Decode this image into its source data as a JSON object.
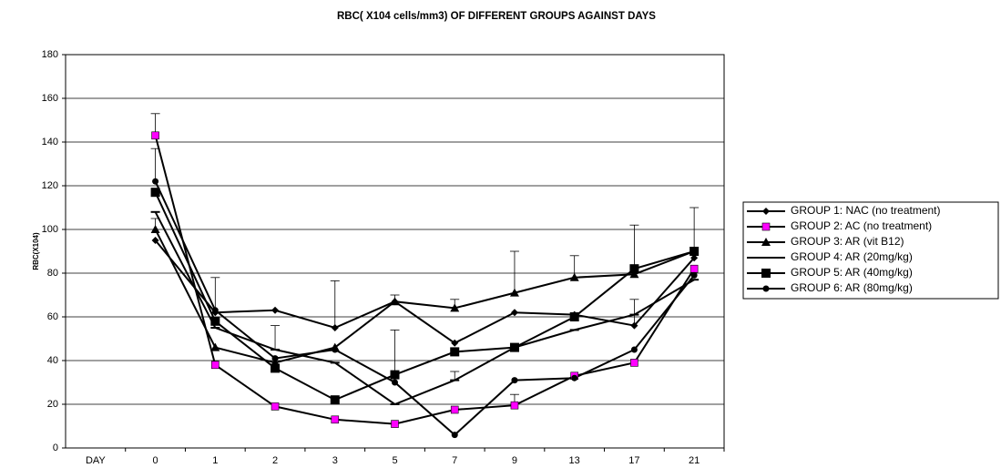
{
  "chart_data": {
    "type": "line",
    "title": "RBC( X104 cells/mm3) OF DIFFERENT GROUPS AGAINST DAYS",
    "y_label": "RBC(X104)",
    "categories": [
      "DAY",
      "0",
      "1",
      "2",
      "3",
      "5",
      "7",
      "9",
      "13",
      "17",
      "21"
    ],
    "ylim": [
      0,
      180
    ],
    "yticks": [
      0,
      20,
      40,
      60,
      80,
      100,
      120,
      140,
      160,
      180
    ],
    "grid": true,
    "legend": "right",
    "series": [
      {
        "name": "GROUP 1: NAC (no treatment)",
        "color": "#000000",
        "marker": "diamond",
        "values": [
          null,
          95,
          62,
          63,
          55,
          67,
          48,
          62,
          61,
          56,
          87
        ],
        "errors": [
          null,
          null,
          null,
          null,
          21.5,
          3,
          null,
          null,
          null,
          12,
          null
        ]
      },
      {
        "name": "GROUP 2: AC (no treatment)",
        "color": "#000000",
        "marker_color": "#ff00ff",
        "marker": "square",
        "values": [
          null,
          143,
          38,
          19,
          13,
          11,
          17.5,
          19.5,
          33,
          39,
          82
        ],
        "errors": [
          null,
          10,
          null,
          null,
          null,
          null,
          null,
          5,
          null,
          null,
          null
        ]
      },
      {
        "name": "GROUP 3: AR (vit B12)",
        "color": "#000000",
        "marker": "triangle",
        "values": [
          null,
          100,
          46,
          39,
          46,
          67,
          64,
          71,
          78,
          79.5,
          90
        ],
        "errors": [
          null,
          5,
          null,
          null,
          null,
          null,
          4,
          19,
          10,
          null,
          null
        ]
      },
      {
        "name": "GROUP 4: AR (20mg/kg)",
        "color": "#000000",
        "marker": "dash",
        "values": [
          null,
          108,
          55,
          45,
          39,
          20,
          31,
          46,
          54,
          61,
          77
        ],
        "errors": [
          null,
          null,
          null,
          11,
          null,
          null,
          4,
          null,
          null,
          null,
          null
        ]
      },
      {
        "name": "GROUP 5: AR (40mg/kg)",
        "color": "#000000",
        "marker": "big-square",
        "values": [
          null,
          117,
          58,
          36.5,
          22,
          33.5,
          44,
          46,
          60,
          82,
          90
        ],
        "errors": [
          null,
          null,
          null,
          null,
          null,
          20.5,
          null,
          null,
          null,
          20,
          20
        ]
      },
      {
        "name": "GROUP 6: AR (80mg/kg)",
        "color": "#000000",
        "marker": "circle",
        "values": [
          null,
          122,
          63,
          41,
          45,
          30,
          6,
          31,
          32,
          45,
          79
        ],
        "errors": [
          null,
          15,
          15,
          null,
          null,
          null,
          null,
          null,
          null,
          null,
          null
        ]
      }
    ]
  }
}
